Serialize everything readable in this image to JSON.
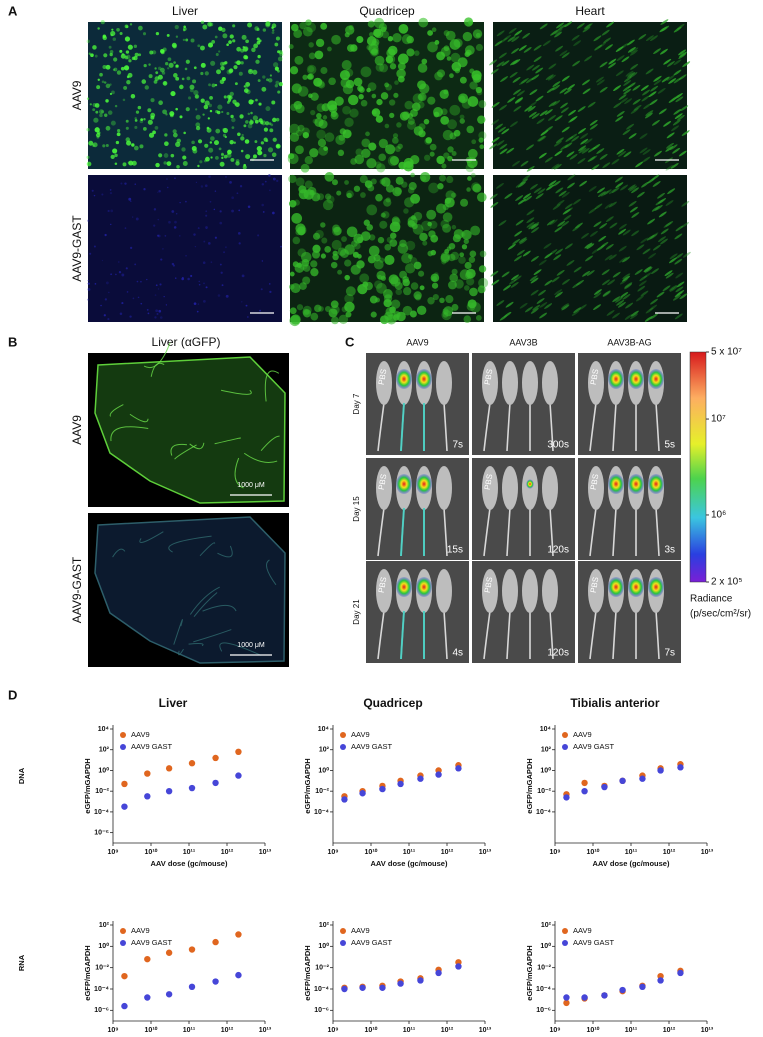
{
  "panel_a": {
    "label": "A",
    "columns": [
      "Liver",
      "Quadricep",
      "Heart"
    ],
    "rows": [
      "AAV9",
      "AAV9-GAST"
    ]
  },
  "panel_b": {
    "label": "B",
    "title": "Liver (αGFP)",
    "rows": [
      "AAV9",
      "AAV9-GAST"
    ],
    "scale_bar": "1000 μM"
  },
  "panel_c": {
    "label": "C",
    "columns": [
      "AAV9",
      "AAV3B",
      "AAV3B-AG"
    ],
    "rows": [
      "Day 7",
      "Day 15",
      "Day 21"
    ],
    "control": "PBS",
    "exposures": [
      [
        "7s",
        "300s",
        "5s"
      ],
      [
        "15s",
        "120s",
        "3s"
      ],
      [
        "4s",
        "120s",
        "7s"
      ]
    ],
    "colorbar": {
      "title": "Radiance",
      "unit": "(p/sec/cm²/sr)",
      "log": true,
      "lim": [
        200000,
        50000000
      ],
      "ticks": [
        {
          "value": 50000000,
          "label": "5 x 10⁷"
        },
        {
          "value": 10000000,
          "label": "10⁷"
        },
        {
          "value": 1000000,
          "label": "10⁶"
        },
        {
          "value": 200000,
          "label": "2 x 10⁵"
        }
      ]
    }
  },
  "panel_d": {
    "label": "D",
    "columns": [
      "Liver",
      "Quadricep",
      "Tibialis anterior"
    ],
    "rows": [
      "DNA",
      "RNA"
    ]
  },
  "chart_data": [
    {
      "type": "scatter",
      "xlabel": "AAV dose (gc/mouse)",
      "ylabel": "eGFP/mGAPDH",
      "log_x": true,
      "log_y": true,
      "legend": "upper left",
      "x": [
        2000000000.0,
        8000000000.0,
        30000000000.0,
        120000000000.0,
        500000000000.0,
        2000000000000.0
      ],
      "series": [
        {
          "name": "AAV9",
          "color": "#e0661f",
          "values": [
            0.05,
            0.5,
            1.6,
            5,
            16,
            63
          ]
        },
        {
          "name": "AAV9 GAST",
          "color": "#4646d8",
          "values": [
            0.00032,
            0.0032,
            0.01,
            0.02,
            0.063,
            0.32
          ]
        }
      ],
      "xlim": [
        1000000000.0,
        10000000000000.0
      ],
      "xticks": [
        {
          "value": 1000000000.0,
          "label": "10⁹"
        },
        {
          "value": 10000000000.0,
          "label": "10¹⁰"
        },
        {
          "value": 100000000000.0,
          "label": "10¹¹"
        },
        {
          "value": 1000000000000.0,
          "label": "10¹²"
        },
        {
          "value": 10000000000000.0,
          "label": "10¹³"
        }
      ],
      "ylim": [
        1e-07,
        10000.0
      ],
      "yticks": [
        {
          "value": 10000.0,
          "label": "10⁴"
        },
        {
          "value": 100,
          "label": "10²"
        },
        {
          "value": 1,
          "label": "10⁰"
        },
        {
          "value": 0.01,
          "label": "10⁻²"
        },
        {
          "value": 0.0001,
          "label": "10⁻⁴"
        },
        {
          "value": 1e-06,
          "label": "10⁻⁶"
        }
      ]
    },
    {
      "type": "scatter",
      "xlabel": "AAV dose (gc/mouse)",
      "ylabel": "eGFP/mGAPDH",
      "log_x": true,
      "log_y": true,
      "legend": "upper left",
      "x": [
        2000000000.0,
        6000000000.0,
        20000000000.0,
        60000000000.0,
        200000000000.0,
        600000000000.0,
        2000000000000.0
      ],
      "series": [
        {
          "name": "AAV9",
          "color": "#e0661f",
          "values": [
            0.0032,
            0.01,
            0.032,
            0.1,
            0.32,
            1,
            3.2
          ]
        },
        {
          "name": "AAV9 GAST",
          "color": "#4646d8",
          "values": [
            0.0016,
            0.0063,
            0.016,
            0.05,
            0.16,
            0.4,
            1.6
          ]
        }
      ],
      "xlim": [
        1000000000.0,
        10000000000000.0
      ],
      "xticks": [
        {
          "value": 1000000000.0,
          "label": "10⁹"
        },
        {
          "value": 10000000000.0,
          "label": "10¹⁰"
        },
        {
          "value": 100000000000.0,
          "label": "10¹¹"
        },
        {
          "value": 1000000000000.0,
          "label": "10¹²"
        },
        {
          "value": 10000000000000.0,
          "label": "10¹³"
        }
      ],
      "ylim": [
        1e-07,
        10000.0
      ],
      "yticks": [
        {
          "value": 10000.0,
          "label": "10⁴"
        },
        {
          "value": 100,
          "label": "10²"
        },
        {
          "value": 1,
          "label": "10⁰"
        },
        {
          "value": 0.01,
          "label": "10⁻²"
        },
        {
          "value": 0.0001,
          "label": "10⁻⁴"
        }
      ]
    },
    {
      "type": "scatter",
      "xlabel": "AAV dose (gc/mouse)",
      "ylabel": "eGFP/mGAPDH",
      "log_x": true,
      "log_y": true,
      "legend": "upper left",
      "x": [
        2000000000.0,
        6000000000.0,
        20000000000.0,
        60000000000.0,
        200000000000.0,
        600000000000.0,
        2000000000000.0
      ],
      "series": [
        {
          "name": "AAV9",
          "color": "#e0661f",
          "values": [
            0.005,
            0.063,
            0.032,
            0.1,
            0.32,
            1.6,
            4
          ]
        },
        {
          "name": "AAV9 GAST",
          "color": "#4646d8",
          "values": [
            0.0025,
            0.01,
            0.025,
            0.1,
            0.16,
            1,
            2
          ]
        }
      ],
      "xlim": [
        1000000000.0,
        10000000000000.0
      ],
      "xticks": [
        {
          "value": 1000000000.0,
          "label": "10⁹"
        },
        {
          "value": 10000000000.0,
          "label": "10¹⁰"
        },
        {
          "value": 100000000000.0,
          "label": "10¹¹"
        },
        {
          "value": 1000000000000.0,
          "label": "10¹²"
        },
        {
          "value": 10000000000000.0,
          "label": "10¹³"
        }
      ],
      "ylim": [
        1e-07,
        10000.0
      ],
      "yticks": [
        {
          "value": 10000.0,
          "label": "10⁴"
        },
        {
          "value": 100,
          "label": "10²"
        },
        {
          "value": 1,
          "label": "10⁰"
        },
        {
          "value": 0.01,
          "label": "10⁻²"
        },
        {
          "value": 0.0001,
          "label": "10⁻⁴"
        }
      ]
    },
    {
      "type": "scatter",
      "xlabel": "AAV dose (gc/mouse)",
      "ylabel": "eGFP/mGAPDH",
      "log_x": true,
      "log_y": true,
      "legend": "upper left",
      "x": [
        2000000000.0,
        8000000000.0,
        30000000000.0,
        120000000000.0,
        500000000000.0,
        2000000000000.0
      ],
      "series": [
        {
          "name": "AAV9",
          "color": "#e0661f",
          "values": [
            0.0016,
            0.063,
            0.25,
            0.5,
            2.5,
            13
          ]
        },
        {
          "name": "AAV9 GAST",
          "color": "#4646d8",
          "values": [
            2.5e-06,
            1.6e-05,
            3.2e-05,
            0.00016,
            0.0005,
            0.002
          ]
        }
      ],
      "xlim": [
        1000000000.0,
        10000000000000.0
      ],
      "xticks": [
        {
          "value": 1000000000.0,
          "label": "10⁹"
        },
        {
          "value": 10000000000.0,
          "label": "10¹⁰"
        },
        {
          "value": 100000000000.0,
          "label": "10¹¹"
        },
        {
          "value": 1000000000000.0,
          "label": "10¹²"
        },
        {
          "value": 10000000000000.0,
          "label": "10¹³"
        }
      ],
      "ylim": [
        1e-07,
        100
      ],
      "yticks": [
        {
          "value": 100,
          "label": "10²"
        },
        {
          "value": 1,
          "label": "10⁰"
        },
        {
          "value": 0.01,
          "label": "10⁻²"
        },
        {
          "value": 0.0001,
          "label": "10⁻⁴"
        },
        {
          "value": 1e-06,
          "label": "10⁻⁶"
        }
      ]
    },
    {
      "type": "scatter",
      "xlabel": "AAV dose (gc/mouse)",
      "ylabel": "eGFP/mGAPDH",
      "log_x": true,
      "log_y": true,
      "legend": "upper left",
      "x": [
        2000000000.0,
        6000000000.0,
        20000000000.0,
        60000000000.0,
        200000000000.0,
        600000000000.0,
        2000000000000.0
      ],
      "series": [
        {
          "name": "AAV9",
          "color": "#e0661f",
          "values": [
            0.00013,
            0.00016,
            0.0002,
            0.0005,
            0.001,
            0.0063,
            0.032
          ]
        },
        {
          "name": "AAV9 GAST",
          "color": "#4646d8",
          "values": [
            0.0001,
            0.00013,
            0.00013,
            0.00032,
            0.00063,
            0.0032,
            0.013
          ]
        }
      ],
      "xlim": [
        1000000000.0,
        10000000000000.0
      ],
      "xticks": [
        {
          "value": 1000000000.0,
          "label": "10⁹"
        },
        {
          "value": 10000000000.0,
          "label": "10¹⁰"
        },
        {
          "value": 100000000000.0,
          "label": "10¹¹"
        },
        {
          "value": 1000000000000.0,
          "label": "10¹²"
        },
        {
          "value": 10000000000000.0,
          "label": "10¹³"
        }
      ],
      "ylim": [
        1e-07,
        100
      ],
      "yticks": [
        {
          "value": 100,
          "label": "10²"
        },
        {
          "value": 1,
          "label": "10⁰"
        },
        {
          "value": 0.01,
          "label": "10⁻²"
        },
        {
          "value": 0.0001,
          "label": "10⁻⁴"
        },
        {
          "value": 1e-06,
          "label": "10⁻⁶"
        }
      ]
    },
    {
      "type": "scatter",
      "xlabel": "AAV dose (gc/mouse)",
      "ylabel": "eGFP/mGAPDH",
      "log_x": true,
      "log_y": true,
      "legend": "upper left",
      "x": [
        2000000000.0,
        6000000000.0,
        20000000000.0,
        60000000000.0,
        200000000000.0,
        600000000000.0,
        2000000000000.0
      ],
      "series": [
        {
          "name": "AAV9",
          "color": "#e0661f",
          "values": [
            5e-06,
            1.3e-05,
            2.5e-05,
            6.3e-05,
            0.0002,
            0.0016,
            0.005
          ]
        },
        {
          "name": "AAV9 GAST",
          "color": "#4646d8",
          "values": [
            1.6e-05,
            1.6e-05,
            2.5e-05,
            8e-05,
            0.00016,
            0.00063,
            0.0032
          ]
        }
      ],
      "xlim": [
        1000000000.0,
        10000000000000.0
      ],
      "xticks": [
        {
          "value": 1000000000.0,
          "label": "10⁹"
        },
        {
          "value": 10000000000.0,
          "label": "10¹⁰"
        },
        {
          "value": 100000000000.0,
          "label": "10¹¹"
        },
        {
          "value": 1000000000000.0,
          "label": "10¹²"
        },
        {
          "value": 10000000000000.0,
          "label": "10¹³"
        }
      ],
      "ylim": [
        1e-07,
        100
      ],
      "yticks": [
        {
          "value": 100,
          "label": "10²"
        },
        {
          "value": 1,
          "label": "10⁰"
        },
        {
          "value": 0.01,
          "label": "10⁻²"
        },
        {
          "value": 0.0001,
          "label": "10⁻⁴"
        },
        {
          "value": 1e-06,
          "label": "10⁻⁶"
        }
      ]
    }
  ]
}
